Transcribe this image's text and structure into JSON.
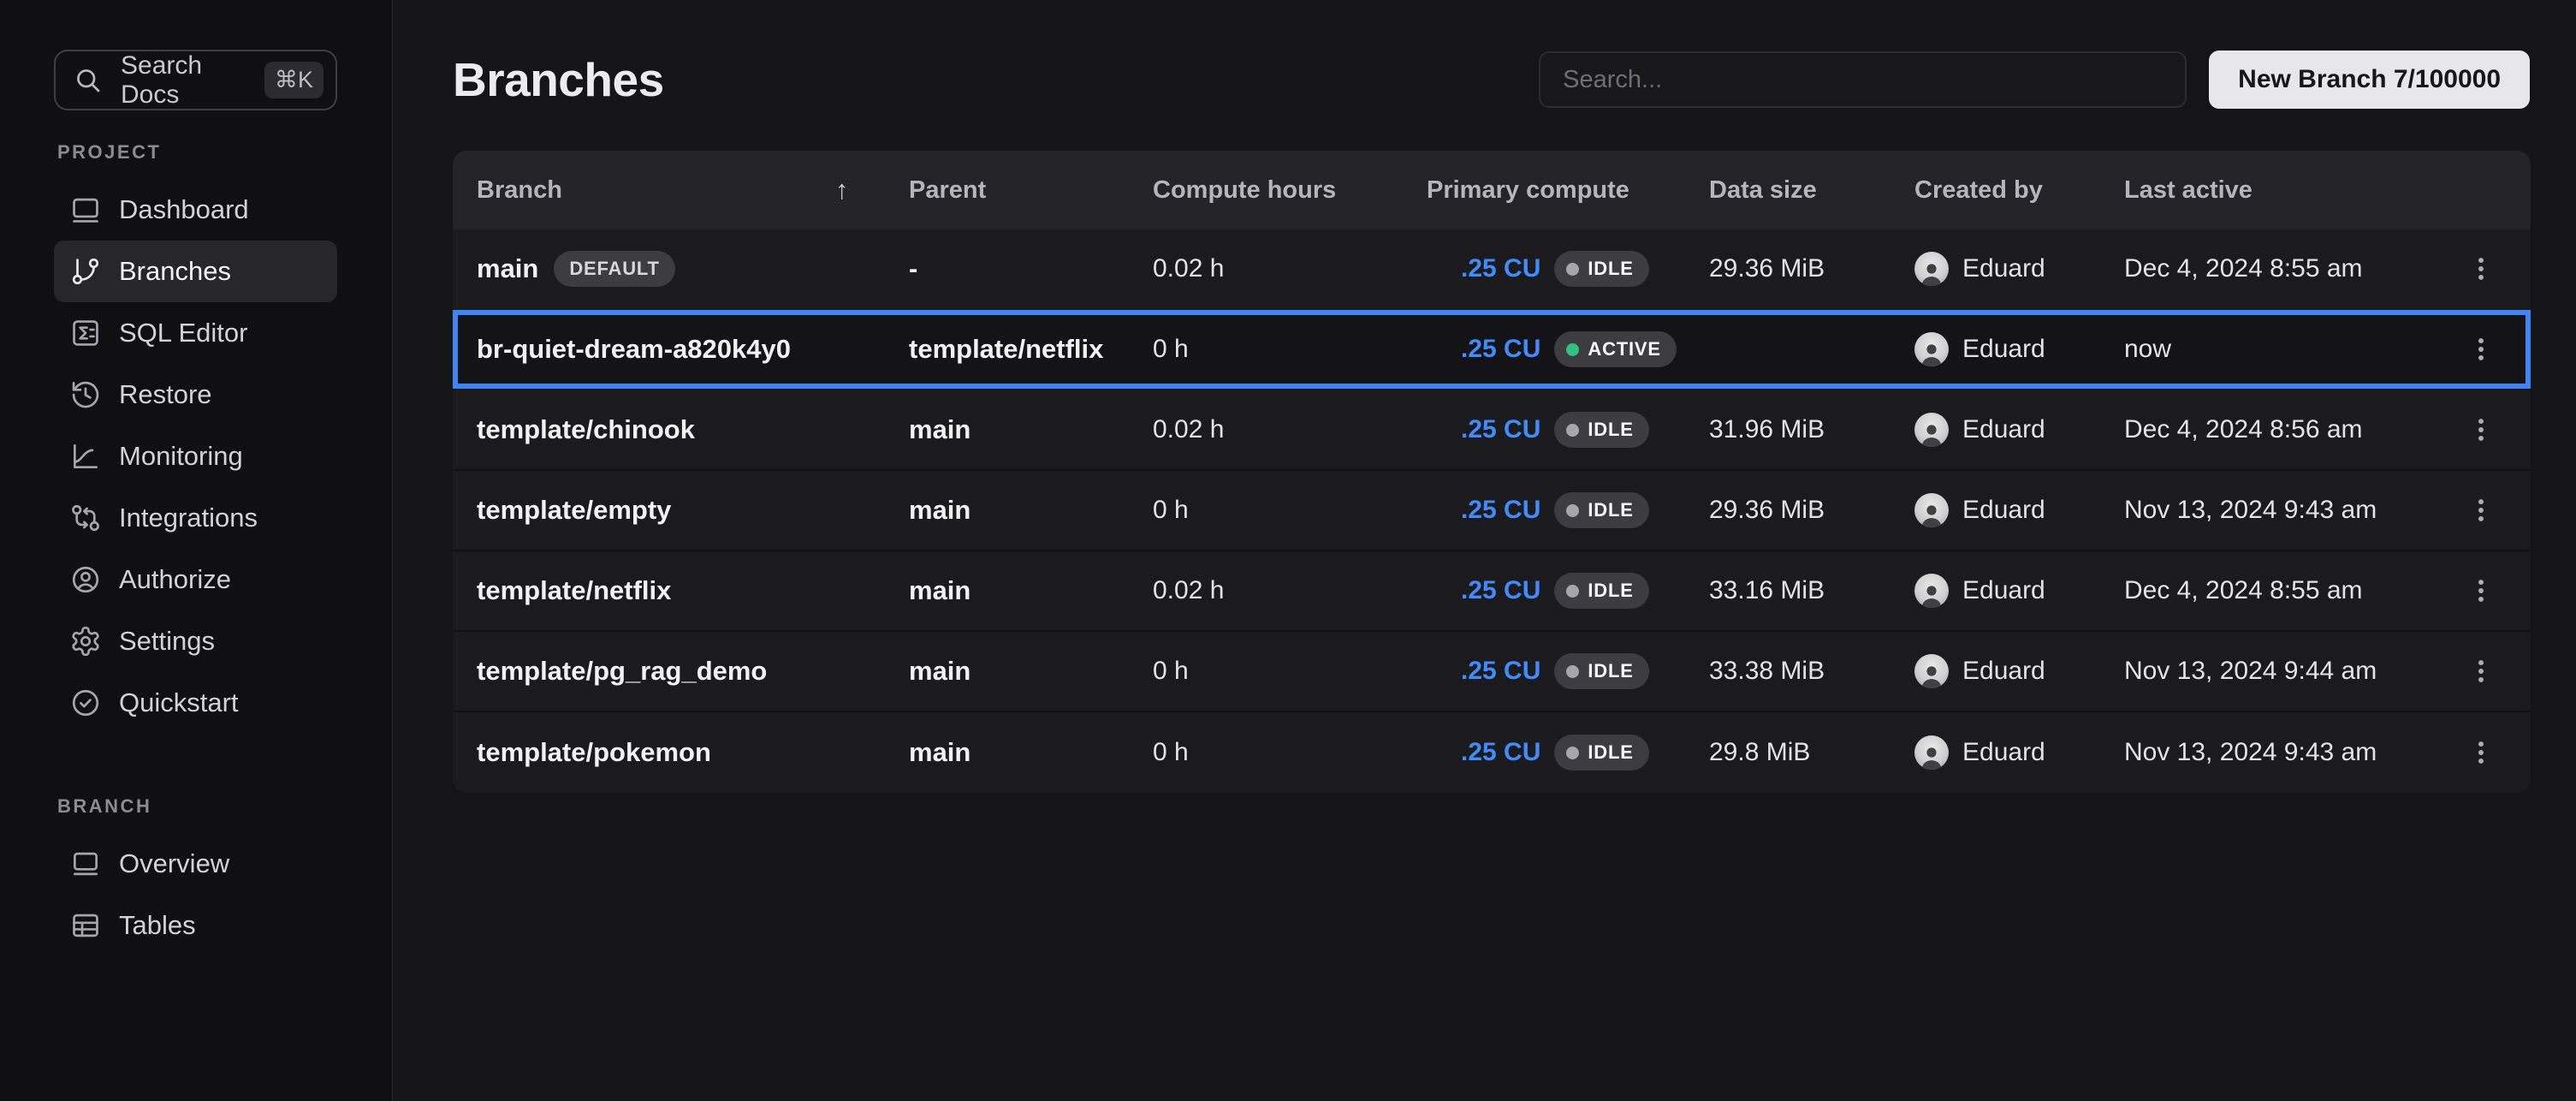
{
  "sidebar": {
    "search": {
      "label": "Search Docs",
      "shortcut": "⌘K"
    },
    "sections": [
      {
        "label": "PROJECT",
        "items": [
          {
            "label": "Dashboard",
            "icon": "dashboard-icon",
            "active": false
          },
          {
            "label": "Branches",
            "icon": "git-branch-icon",
            "active": true
          },
          {
            "label": "SQL Editor",
            "icon": "sql-editor-icon",
            "active": false
          },
          {
            "label": "Restore",
            "icon": "history-icon",
            "active": false
          },
          {
            "label": "Monitoring",
            "icon": "chart-icon",
            "active": false
          },
          {
            "label": "Integrations",
            "icon": "integrations-icon",
            "active": false
          },
          {
            "label": "Authorize",
            "icon": "user-circle-icon",
            "active": false
          },
          {
            "label": "Settings",
            "icon": "gear-icon",
            "active": false
          },
          {
            "label": "Quickstart",
            "icon": "check-circle-icon",
            "active": false
          }
        ]
      },
      {
        "label": "BRANCH",
        "items": [
          {
            "label": "Overview",
            "icon": "overview-icon",
            "active": false
          },
          {
            "label": "Tables",
            "icon": "table-icon",
            "active": false
          }
        ]
      }
    ]
  },
  "header": {
    "title": "Branches",
    "search_placeholder": "Search...",
    "new_branch_label": "New Branch 7/100000"
  },
  "table": {
    "columns": [
      "Branch",
      "Parent",
      "Compute hours",
      "Primary compute",
      "Data size",
      "Created by",
      "Last active"
    ],
    "sort": {
      "column": "Branch",
      "direction": "asc",
      "arrow": "↑"
    },
    "rows": [
      {
        "branch": "main",
        "badge": "DEFAULT",
        "parent": "-",
        "compute_hours": "0.02 h",
        "compute_units": ".25 CU",
        "status": "IDLE",
        "data_size": "29.36 MiB",
        "created_by": "Eduard",
        "last_active": "Dec 4, 2024 8:55 am",
        "highlighted": false
      },
      {
        "branch": "br-quiet-dream-a820k4y0",
        "badge": "",
        "parent": "template/netflix",
        "compute_hours": "0 h",
        "compute_units": ".25 CU",
        "status": "ACTIVE",
        "data_size": "",
        "created_by": "Eduard",
        "last_active": "now",
        "highlighted": true
      },
      {
        "branch": "template/chinook",
        "badge": "",
        "parent": "main",
        "compute_hours": "0.02 h",
        "compute_units": ".25 CU",
        "status": "IDLE",
        "data_size": "31.96 MiB",
        "created_by": "Eduard",
        "last_active": "Dec 4, 2024 8:56 am",
        "highlighted": false
      },
      {
        "branch": "template/empty",
        "badge": "",
        "parent": "main",
        "compute_hours": "0 h",
        "compute_units": ".25 CU",
        "status": "IDLE",
        "data_size": "29.36 MiB",
        "created_by": "Eduard",
        "last_active": "Nov 13, 2024 9:43 am",
        "highlighted": false
      },
      {
        "branch": "template/netflix",
        "badge": "",
        "parent": "main",
        "compute_hours": "0.02 h",
        "compute_units": ".25 CU",
        "status": "IDLE",
        "data_size": "33.16 MiB",
        "created_by": "Eduard",
        "last_active": "Dec 4, 2024 8:55 am",
        "highlighted": false
      },
      {
        "branch": "template/pg_rag_demo",
        "badge": "",
        "parent": "main",
        "compute_hours": "0 h",
        "compute_units": ".25 CU",
        "status": "IDLE",
        "data_size": "33.38 MiB",
        "created_by": "Eduard",
        "last_active": "Nov 13, 2024 9:44 am",
        "highlighted": false
      },
      {
        "branch": "template/pokemon",
        "badge": "",
        "parent": "main",
        "compute_hours": "0 h",
        "compute_units": ".25 CU",
        "status": "IDLE",
        "data_size": "29.8 MiB",
        "created_by": "Eduard",
        "last_active": "Nov 13, 2024 9:43 am",
        "highlighted": false
      }
    ]
  },
  "colors": {
    "highlight_border": "#3e86f7",
    "compute_units_blue": "#3f8cff",
    "status_active_green": "#2ec27e",
    "status_idle_gray": "#a6a6ac",
    "table_header_bg": "#242428",
    "row_bg": "#1b1b1d",
    "page_bg": "#151517",
    "button_bg": "#e7e7e9"
  }
}
